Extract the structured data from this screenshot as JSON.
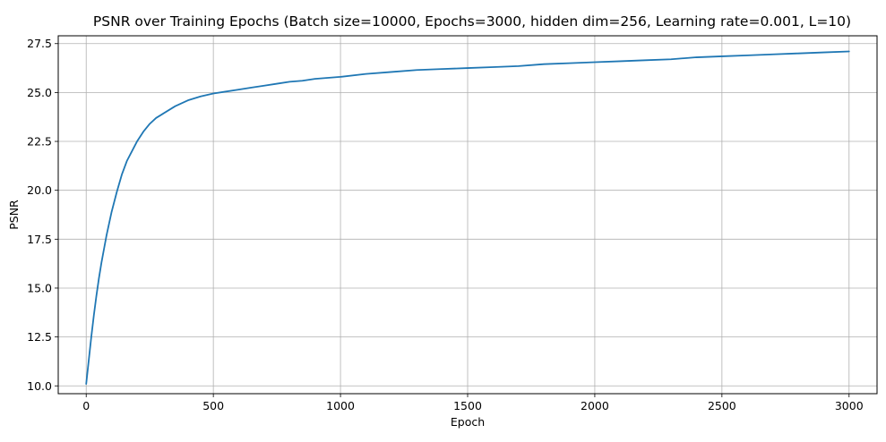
{
  "chart_data": {
    "type": "line",
    "title": "PSNR over Training Epochs (Batch size=10000, Epochs=3000, hidden dim=256, Learning rate=0.001, L=10)",
    "xlabel": "Epoch",
    "ylabel": "PSNR",
    "xlim": [
      -110,
      3110
    ],
    "ylim": [
      9.6,
      27.9
    ],
    "xticks": [
      0,
      500,
      1000,
      1500,
      2000,
      2500,
      3000
    ],
    "xtick_labels": [
      "0",
      "500",
      "1000",
      "1500",
      "2000",
      "2500",
      "3000"
    ],
    "yticks": [
      10.0,
      12.5,
      15.0,
      17.5,
      20.0,
      22.5,
      25.0,
      27.5
    ],
    "ytick_labels": [
      "10.0",
      "12.5",
      "15.0",
      "17.5",
      "20.0",
      "22.5",
      "25.0",
      "27.5"
    ],
    "grid": true,
    "legend": "none",
    "colors": {
      "line": "#1f77b4",
      "grid": "#b0b0b0",
      "axes": "#000000"
    },
    "series": [
      {
        "x": [
          0,
          10,
          20,
          30,
          40,
          50,
          60,
          70,
          80,
          90,
          100,
          120,
          140,
          160,
          180,
          200,
          225,
          250,
          275,
          300,
          350,
          400,
          450,
          500,
          550,
          600,
          650,
          700,
          750,
          800,
          850,
          900,
          950,
          1000,
          1100,
          1200,
          1300,
          1400,
          1500,
          1600,
          1700,
          1800,
          1900,
          2000,
          2100,
          2200,
          2300,
          2400,
          2500,
          2600,
          2700,
          2800,
          2900,
          3000
        ],
        "values": [
          10.1,
          11.3,
          12.5,
          13.6,
          14.6,
          15.5,
          16.3,
          17.0,
          17.7,
          18.3,
          18.9,
          19.9,
          20.8,
          21.5,
          22.0,
          22.5,
          23.0,
          23.4,
          23.7,
          23.9,
          24.3,
          24.6,
          24.8,
          24.95,
          25.05,
          25.15,
          25.25,
          25.35,
          25.45,
          25.55,
          25.6,
          25.7,
          25.75,
          25.8,
          25.95,
          26.05,
          26.15,
          26.2,
          26.25,
          26.3,
          26.35,
          26.45,
          26.5,
          26.55,
          26.6,
          26.65,
          26.7,
          26.8,
          26.85,
          26.9,
          26.95,
          27.0,
          27.05,
          27.1
        ]
      }
    ]
  }
}
